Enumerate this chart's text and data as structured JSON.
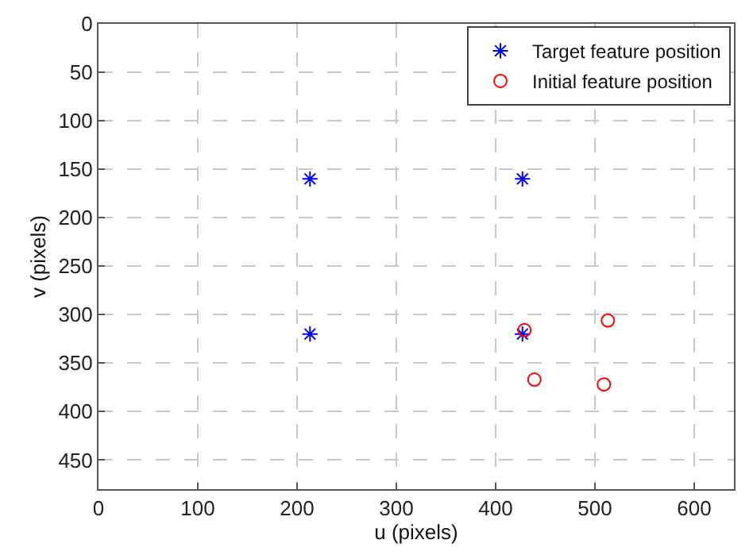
{
  "chart_data": {
    "type": "scatter",
    "xlabel": "u (pixels)",
    "ylabel": "v (pixels)",
    "xlim": [
      0,
      640
    ],
    "xticks": [
      0,
      100,
      200,
      300,
      400,
      500,
      600
    ],
    "ylim": [
      480,
      0
    ],
    "yticks": [
      0,
      50,
      100,
      150,
      200,
      250,
      300,
      350,
      400,
      450
    ],
    "grid": true,
    "legend": "top right",
    "series": [
      {
        "name": "Target feature position",
        "color": "#0000ff",
        "marker": "cross",
        "x": [
          213,
          427,
          213,
          427
        ],
        "values": [
          160,
          160,
          320,
          320
        ]
      },
      {
        "name": "Initial feature position",
        "color": "#ff0000",
        "marker": "circle",
        "x": [
          429,
          513,
          439,
          509
        ],
        "values": [
          316,
          306,
          367,
          372
        ]
      }
    ]
  }
}
